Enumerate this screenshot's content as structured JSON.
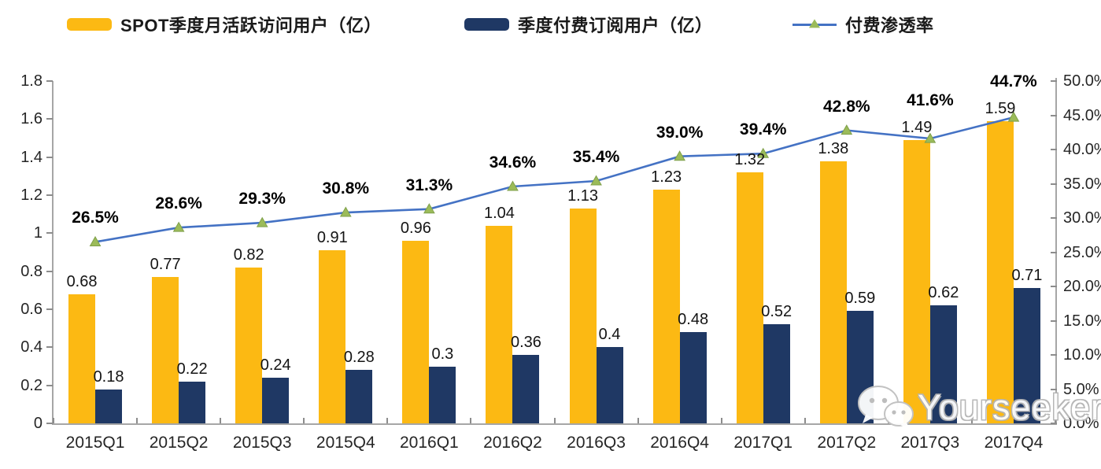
{
  "colors": {
    "mau_bar": "#FCB913",
    "paid_bar": "#1F3864",
    "line": "#4472C4",
    "marker": "#9BBB59",
    "axis_line": "#a6a6a6",
    "tick_text": "#262626"
  },
  "watermark": {
    "text": "Yourseeker",
    "icon": "wechat-icon"
  },
  "chart_data": {
    "type": "bar",
    "subtype": "grouped-bars-with-line",
    "categories": [
      "2015Q1",
      "2015Q2",
      "2015Q3",
      "2015Q4",
      "2016Q1",
      "2016Q2",
      "2016Q3",
      "2016Q4",
      "2017Q1",
      "2017Q2",
      "2017Q3",
      "2017Q4"
    ],
    "series": [
      {
        "name": "SPOT季度月活跃访问用户（亿）",
        "type": "bar",
        "axis": "left",
        "color": "#FCB913",
        "values": [
          0.68,
          0.77,
          0.82,
          0.91,
          0.96,
          1.04,
          1.13,
          1.23,
          1.32,
          1.38,
          1.49,
          1.59
        ]
      },
      {
        "name": "季度付费订阅用户（亿）",
        "type": "bar",
        "axis": "left",
        "color": "#1F3864",
        "values": [
          0.18,
          0.22,
          0.24,
          0.28,
          0.3,
          0.36,
          0.4,
          0.48,
          0.52,
          0.59,
          0.62,
          0.71
        ]
      },
      {
        "name": "付费渗透率",
        "type": "line",
        "axis": "right",
        "color": "#4472C4",
        "marker": "triangle",
        "marker_color": "#9BBB59",
        "values": [
          26.5,
          28.6,
          29.3,
          30.8,
          31.3,
          34.6,
          35.4,
          39.0,
          39.4,
          42.8,
          41.6,
          44.7
        ]
      }
    ],
    "title": "",
    "xlabel": "",
    "ylabel": "",
    "left_axis": {
      "min": 0,
      "max": 1.8,
      "step": 0.2,
      "ticks": [
        "1.8",
        "1.6",
        "1.4",
        "1.2",
        "1",
        "0.8",
        "0.6",
        "0.4",
        "0.2",
        "0"
      ]
    },
    "right_axis": {
      "min": 0,
      "max": 50,
      "step": 5,
      "unit": "%",
      "ticks": [
        "50.0%",
        "45.0%",
        "40.0%",
        "35.0%",
        "30.0%",
        "25.0%",
        "20.0%",
        "15.0%",
        "10.0%",
        "5.0%",
        "0.0%"
      ]
    },
    "grid": false,
    "legend_position": "top",
    "data_labels": true
  }
}
